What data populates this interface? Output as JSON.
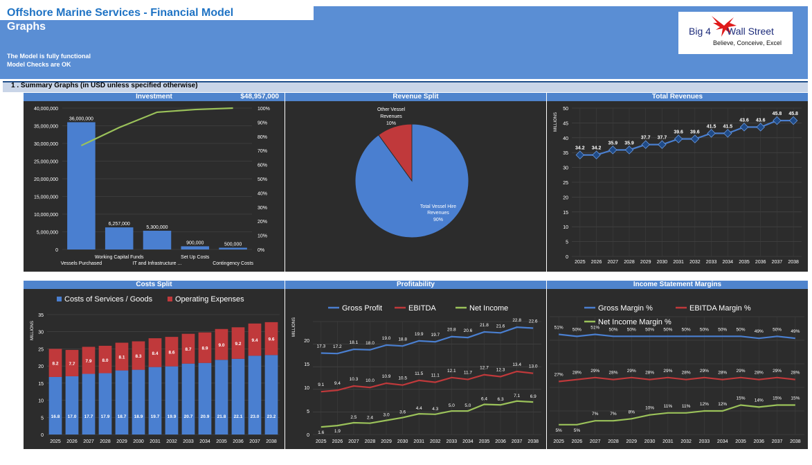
{
  "header": {
    "title": "Offshore Marine Services - Financial Model",
    "subtitle": "Graphs",
    "status_line_1": "The Model is fully functional",
    "status_line_2": "Model Checks are OK",
    "logo_text_a": "Big 4",
    "logo_text_b": "Wall Street",
    "logo_tagline": "Believe, Conceive, Excel"
  },
  "section": {
    "label": "1 .  Summary Graphs (in USD unless specified otherwise)"
  },
  "colors": {
    "banner": "#5a8ed4",
    "panel_bg": "#2c2c2c",
    "panel_header": "#4f84cd",
    "blue_series": "#4a7fd0",
    "red_series": "#c0393b",
    "green_series": "#9bc25a"
  },
  "chart_data": [
    {
      "type": "bar",
      "title": "Investment",
      "title_value": "$48,957,000",
      "categories": [
        "Vessels Purchased",
        "Working Capital Funds",
        "IT and Infrastructure ...",
        "Set Up Costs",
        "Contingency Costs"
      ],
      "values": [
        36000000,
        6257000,
        5300000,
        900000,
        500000
      ],
      "value_labels": [
        "36,000,000",
        "6,257,000",
        "5,300,000",
        "900,000",
        "500,000"
      ],
      "y_ticks": [
        "0",
        "5,000,000",
        "10,000,000",
        "15,000,000",
        "20,000,000",
        "25,000,000",
        "30,000,000",
        "35,000,000",
        "40,000,000"
      ],
      "y2_ticks": [
        "0%",
        "10%",
        "20%",
        "30%",
        "40%",
        "50%",
        "60%",
        "70%",
        "80%",
        "90%",
        "100%"
      ],
      "ylim": [
        0,
        40000000
      ],
      "cumulative_pct": [
        73.5,
        86.3,
        97.1,
        99.0,
        100
      ]
    },
    {
      "type": "pie",
      "title": "Revenue Split",
      "slices": [
        {
          "label_1": "Total Vessel Hire",
          "label_2": "Revenues",
          "pct_label": "90%",
          "value": 90
        },
        {
          "label_1": "Other Vessel",
          "label_2": "Revenues",
          "pct_label": "10%",
          "value": 10
        }
      ]
    },
    {
      "type": "line",
      "title": "Total Revenues",
      "ylabel": "MILLIONS",
      "x": [
        "2025",
        "2026",
        "2027",
        "2028",
        "2029",
        "2030",
        "2031",
        "2032",
        "2033",
        "2034",
        "2035",
        "2036",
        "2037",
        "2038"
      ],
      "values": [
        34.2,
        34.2,
        35.9,
        35.9,
        37.7,
        37.7,
        39.6,
        39.6,
        41.5,
        41.5,
        43.6,
        43.6,
        45.8,
        45.8
      ],
      "labels": [
        "34.2",
        "34.2",
        "35.9",
        "35.9",
        "37.7",
        "37.7",
        "39.6",
        "39.6",
        "41.5",
        "41.5",
        "43.6",
        "43.6",
        "45.8",
        "45.8"
      ],
      "y_ticks": [
        "0",
        "5",
        "10",
        "15",
        "20",
        "25",
        "30",
        "35",
        "40",
        "45",
        "50"
      ],
      "ylim": [
        0,
        50
      ]
    },
    {
      "type": "bar",
      "title": "Costs Split",
      "ylabel": "MILLIONS",
      "x": [
        "2025",
        "2026",
        "2027",
        "2028",
        "2029",
        "2030",
        "2031",
        "2032",
        "2033",
        "2034",
        "2035",
        "2036",
        "2037",
        "2038"
      ],
      "series": [
        {
          "name": "Costs of Services / Goods",
          "values": [
            16.8,
            17.0,
            17.7,
            17.9,
            18.7,
            18.9,
            19.7,
            19.9,
            20.7,
            20.9,
            21.8,
            22.1,
            23.0,
            23.2
          ],
          "labels": [
            "16.8",
            "17.0",
            "17.7",
            "17.9",
            "18.7",
            "18.9",
            "19.7",
            "19.9",
            "20.7",
            "20.9",
            "21.8",
            "22.1",
            "23.0",
            "23.2"
          ]
        },
        {
          "name": "Operating Expenses",
          "values": [
            8.2,
            7.7,
            7.9,
            8.0,
            8.1,
            8.3,
            8.4,
            8.6,
            8.7,
            8.9,
            9.0,
            9.2,
            9.4,
            9.6
          ],
          "labels": [
            "8.2",
            "7.7",
            "7.9",
            "8.0",
            "8.1",
            "8.3",
            "8.4",
            "8.6",
            "8.7",
            "8.9",
            "9.0",
            "9.2",
            "9.4",
            "9.6"
          ]
        }
      ],
      "y_ticks": [
        "0",
        "5",
        "10",
        "15",
        "20",
        "25",
        "30",
        "35"
      ],
      "ylim": [
        0,
        35
      ]
    },
    {
      "type": "line",
      "title": "Profitability",
      "ylabel": "MILLIONS",
      "x": [
        "2025",
        "2026",
        "2027",
        "2028",
        "2029",
        "2030",
        "2031",
        "2032",
        "2033",
        "2034",
        "2035",
        "2036",
        "2037",
        "2038"
      ],
      "series": [
        {
          "name": "Gross Profit",
          "values": [
            17.3,
            17.2,
            18.1,
            18.0,
            19.0,
            18.8,
            19.9,
            19.7,
            20.8,
            20.6,
            21.8,
            21.6,
            22.8,
            22.6
          ],
          "labels": [
            "17.3",
            "17.2",
            "18.1",
            "18.0",
            "19.0",
            "18.8",
            "19.9",
            "19.7",
            "20.8",
            "20.6",
            "21.8",
            "21.6",
            "22.8",
            "22.6"
          ]
        },
        {
          "name": "EBITDA",
          "values": [
            9.1,
            9.4,
            10.3,
            10.0,
            10.9,
            10.5,
            11.5,
            11.1,
            12.1,
            11.7,
            12.7,
            12.3,
            13.4,
            13.0
          ],
          "labels": [
            "9.1",
            "9.4",
            "10.3",
            "10.0",
            "10.9",
            "10.5",
            "11.5",
            "11.1",
            "12.1",
            "11.7",
            "12.7",
            "12.3",
            "13.4",
            "13.0"
          ]
        },
        {
          "name": "Net Income",
          "values": [
            1.6,
            1.9,
            2.5,
            2.4,
            3.0,
            3.6,
            4.4,
            4.3,
            5.0,
            5.0,
            6.4,
            6.3,
            7.1,
            6.9
          ],
          "labels": [
            "1.6",
            "1.9",
            "2.5",
            "2.4",
            "3.0",
            "3.6",
            "4.4",
            "4.3",
            "5.0",
            "5.0",
            "6.4",
            "6.3",
            "7.1",
            "6.9"
          ]
        }
      ],
      "y_ticks": [
        "0",
        "5",
        "10",
        "15",
        "20"
      ],
      "ylim": [
        0,
        25
      ]
    },
    {
      "type": "line",
      "title": "Income Statement Margins",
      "x": [
        "2025",
        "2026",
        "2027",
        "2028",
        "2029",
        "2030",
        "2031",
        "2032",
        "2033",
        "2034",
        "2035",
        "2036",
        "2037",
        "2038"
      ],
      "series": [
        {
          "name": "Gross Margin %",
          "values": [
            51,
            50,
            51,
            50,
            50,
            50,
            50,
            50,
            50,
            50,
            50,
            49,
            50,
            49
          ],
          "labels": [
            "51%",
            "50%",
            "51%",
            "50%",
            "50%",
            "50%",
            "50%",
            "50%",
            "50%",
            "50%",
            "50%",
            "49%",
            "50%",
            "49%"
          ]
        },
        {
          "name": "EBITDA Margin %",
          "values": [
            27,
            28,
            29,
            28,
            29,
            28,
            29,
            28,
            29,
            28,
            29,
            28,
            29,
            28
          ],
          "labels": [
            "27%",
            "28%",
            "29%",
            "28%",
            "29%",
            "28%",
            "29%",
            "28%",
            "29%",
            "28%",
            "29%",
            "28%",
            "29%",
            "28%"
          ]
        },
        {
          "name": "Net Income Margin %",
          "values": [
            5,
            5,
            7,
            7,
            8,
            10,
            11,
            11,
            12,
            12,
            15,
            14,
            15,
            15
          ],
          "labels": [
            "5%",
            "5%",
            "7%",
            "7%",
            "8%",
            "10%",
            "11%",
            "11%",
            "12%",
            "12%",
            "15%",
            "14%",
            "15%",
            "15%"
          ]
        }
      ],
      "ylim": [
        0,
        60
      ]
    }
  ]
}
